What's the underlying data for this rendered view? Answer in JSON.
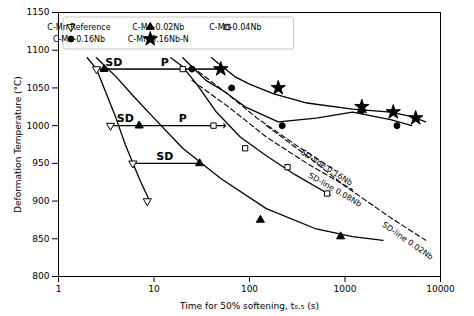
{
  "chart_data": {
    "type": "line",
    "xlabel": "Time for 50% softening, t₀.₅ (s)",
    "ylabel": "Deformation Temperature (°C)",
    "log": "x",
    "xlim": [
      1,
      10000
    ],
    "xticks": [
      1,
      10,
      100,
      1000,
      10000
    ],
    "ylim": [
      800,
      1150
    ],
    "yticks": [
      800,
      850,
      900,
      950,
      1000,
      1050,
      1100,
      1150
    ],
    "grid": false,
    "legend": "upper left",
    "series": [
      {
        "name": "C-Mn Reference",
        "color": "black",
        "line_style": "solid",
        "marker": "triangle-down-open",
        "x": [
          2.0,
          2.5,
          3.0,
          4.0,
          5.0,
          7.0,
          9.0
        ],
        "values": [
          1090,
          1075,
          1050,
          1010,
          975,
          930,
          900
        ],
        "marker_x": [
          2.5,
          3.5,
          6.0,
          8.5
        ],
        "marker_values": [
          1075,
          1000,
          950,
          900
        ]
      },
      {
        "name": "C-Mn-0.02Nb",
        "color": "black",
        "line_style": "solid",
        "marker": "triangle-up-filled",
        "x": [
          2.5,
          3.0,
          4.0,
          6.0,
          10.0,
          20,
          50,
          150,
          500,
          1200,
          2500
        ],
        "values": [
          1090,
          1080,
          1065,
          1040,
          1010,
          970,
          930,
          890,
          863,
          853,
          848
        ],
        "marker_x": [
          3.0,
          7.0,
          30,
          130,
          900
        ],
        "marker_values": [
          1075,
          1000,
          950,
          875,
          853
        ]
      },
      {
        "name": "C-Mn-0.04Nb",
        "color": "black",
        "line_style": "solid",
        "marker": "square-open",
        "x": [
          15,
          20,
          28,
          45,
          80,
          150,
          300,
          700
        ],
        "values": [
          1090,
          1078,
          1055,
          1018,
          985,
          960,
          935,
          908
        ],
        "marker_x": [
          20,
          42,
          90,
          250,
          650
        ],
        "marker_values": [
          1075,
          1000,
          970,
          945,
          910
        ]
      },
      {
        "name": "C-Mn-0.16Nb",
        "color": "black",
        "line_style": "solid",
        "marker": "circle-filled",
        "x": [
          20,
          25,
          35,
          55,
          90,
          200,
          500,
          1200,
          3000,
          5000
        ],
        "values": [
          1090,
          1078,
          1060,
          1045,
          1025,
          1005,
          1010,
          1018,
          1008,
          1000
        ],
        "marker_x": [
          25,
          65,
          220,
          1500,
          3500
        ],
        "marker_values": [
          1075,
          1050,
          1000,
          1020,
          1000
        ]
      },
      {
        "name": "C-Mn-0.16Nb-N",
        "color": "black",
        "line_style": "solid",
        "marker": "star-filled",
        "x": [
          40,
          50,
          70,
          100,
          180,
          400,
          1200,
          3000,
          5000,
          7000
        ],
        "values": [
          1090,
          1080,
          1065,
          1055,
          1042,
          1030,
          1022,
          1018,
          1012,
          1005
        ],
        "marker_x": [
          50,
          200,
          1500,
          3200,
          5500
        ],
        "marker_values": [
          1075,
          1050,
          1025,
          1018,
          1010
        ]
      },
      {
        "name": "SD-line 0.16Nb",
        "color": "black",
        "line_style": "dashed",
        "marker": "none",
        "x": [
          25,
          55,
          120,
          300,
          800
        ],
        "values": [
          1078,
          1045,
          1010,
          975,
          940
        ],
        "label_x": 350,
        "label_y": 966
      },
      {
        "name": "SD-line 0.08Nb",
        "color": "black",
        "line_style": "dashed",
        "marker": "none",
        "x": [
          25,
          60,
          150,
          400,
          1200
        ],
        "values": [
          1060,
          1025,
          985,
          950,
          915
        ],
        "label_x": 420,
        "label_y": 935
      },
      {
        "name": "SD-line 0.02Nb",
        "color": "black",
        "line_style": "dashed",
        "marker": "none",
        "x": [
          150,
          400,
          1000,
          3000,
          7000
        ],
        "values": [
          1000,
          960,
          920,
          878,
          848
        ],
        "label_x": 2500,
        "label_y": 870
      }
    ],
    "arrows": [
      {
        "x1": 2.5,
        "x2": 3.0,
        "y": 1075
      },
      {
        "x1": 3.0,
        "x2": 50,
        "y": 1075
      },
      {
        "x1": 3.5,
        "x2": 7.0,
        "y": 1000
      },
      {
        "x1": 7.0,
        "x2": 55,
        "y": 1000
      },
      {
        "x1": 6.0,
        "x2": 30,
        "y": 950
      }
    ],
    "annotations": [
      {
        "text": "SD",
        "x": 3.8,
        "y": 1078
      },
      {
        "text": "P",
        "x": 13,
        "y": 1078
      },
      {
        "text": "SD",
        "x": 5.0,
        "y": 1003
      },
      {
        "text": "P",
        "x": 20,
        "y": 1003
      },
      {
        "text": "SD",
        "x": 13,
        "y": 953
      }
    ]
  }
}
